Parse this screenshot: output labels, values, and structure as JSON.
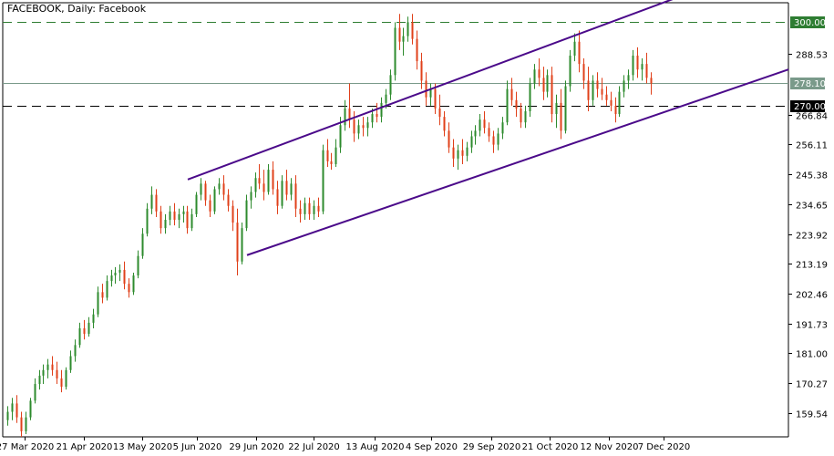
{
  "header": {
    "symbol": "FACEBOOK",
    "timeframe": "Daily:",
    "description": "Facebook"
  },
  "chart_data": {
    "type": "candlestick",
    "title": "FACEBOOK, Daily:  Facebook",
    "ylim": [
      151.0,
      307.0
    ],
    "grid": false,
    "y_ticks": [
      "300.00",
      "288.53",
      "278.10",
      "270.00",
      "266.84",
      "256.11",
      "245.38",
      "234.65",
      "223.92",
      "213.19",
      "202.46",
      "191.73",
      "181.00",
      "170.27",
      "159.54"
    ],
    "x_ticks": [
      "27 Mar 2020",
      "21 Apr 2020",
      "13 May 2020",
      "5 Jun 2020",
      "29 Jun 2020",
      "22 Jul 2020",
      "13 Aug 2020",
      "4 Sep 2020",
      "29 Sep 2020",
      "21 Oct 2020",
      "12 Nov 2020",
      "7 Dec 2020"
    ],
    "levels": [
      {
        "value": 300.0,
        "label": "300.00",
        "style": "dashed",
        "color": "#2e7d32",
        "badge_bg": "#2e7d32",
        "badge_fg": "#ffffff"
      },
      {
        "value": 278.1,
        "label": "278.10",
        "style": "solid",
        "color": "#7a9a8a",
        "badge_bg": "#7a9a8a",
        "badge_fg": "#ffffff"
      },
      {
        "value": 270.0,
        "label": "270.00",
        "style": "dashed",
        "color": "#000000",
        "badge_bg": "#000000",
        "badge_fg": "#ffffff"
      }
    ],
    "channel_lines": [
      {
        "name": "upper",
        "from": [
          "5 Jun 2020",
          243.5
        ],
        "to": [
          "10 Dec 2020",
          309.5
        ],
        "color": "#4b0a8a"
      },
      {
        "name": "lower",
        "from": [
          "29 Jun 2020",
          216.3
        ],
        "to": [
          "15 Dec 2020",
          283.0
        ],
        "color": "#4b0a8a"
      }
    ],
    "colors": {
      "up": "#2e8b2e",
      "down": "#e0401a",
      "wick": "#000000"
    },
    "last_close": 278.1,
    "series": [
      {
        "name": "Facebook",
        "ohlc": [
          [
            157,
            162,
            155,
            160
          ],
          [
            160,
            165,
            157,
            163
          ],
          [
            163,
            166,
            156,
            158
          ],
          [
            158,
            160,
            151,
            153
          ],
          [
            153,
            160,
            152,
            158
          ],
          [
            158,
            165,
            157,
            164
          ],
          [
            164,
            172,
            163,
            170
          ],
          [
            170,
            175,
            168,
            173
          ],
          [
            173,
            177,
            170,
            175
          ],
          [
            175,
            179,
            172,
            177
          ],
          [
            177,
            180,
            173,
            175
          ],
          [
            175,
            178,
            170,
            172
          ],
          [
            172,
            175,
            167,
            169
          ],
          [
            169,
            176,
            168,
            175
          ],
          [
            175,
            182,
            174,
            180
          ],
          [
            180,
            186,
            178,
            184
          ],
          [
            184,
            192,
            183,
            190
          ],
          [
            190,
            193,
            186,
            188
          ],
          [
            188,
            194,
            187,
            192
          ],
          [
            192,
            197,
            190,
            195
          ],
          [
            195,
            205,
            194,
            203
          ],
          [
            203,
            206,
            199,
            201
          ],
          [
            201,
            209,
            200,
            207
          ],
          [
            207,
            211,
            205,
            209
          ],
          [
            209,
            212,
            206,
            210
          ],
          [
            210,
            213,
            207,
            211
          ],
          [
            211,
            214,
            204,
            206
          ],
          [
            206,
            208,
            201,
            203
          ],
          [
            203,
            210,
            202,
            209
          ],
          [
            209,
            218,
            208,
            216
          ],
          [
            216,
            226,
            215,
            224
          ],
          [
            224,
            235,
            223,
            233
          ],
          [
            233,
            241,
            231,
            238
          ],
          [
            238,
            240,
            230,
            232
          ],
          [
            232,
            234,
            224,
            226
          ],
          [
            226,
            231,
            224,
            229
          ],
          [
            229,
            234,
            227,
            232
          ],
          [
            232,
            235,
            227,
            229
          ],
          [
            229,
            233,
            226,
            231
          ],
          [
            231,
            234,
            228,
            232
          ],
          [
            232,
            234,
            224,
            226
          ],
          [
            226,
            233,
            225,
            231
          ],
          [
            231,
            239,
            230,
            238
          ],
          [
            238,
            244,
            236,
            242
          ],
          [
            242,
            243,
            234,
            236
          ],
          [
            236,
            238,
            230,
            232
          ],
          [
            232,
            241,
            231,
            240
          ],
          [
            240,
            244,
            238,
            242
          ],
          [
            242,
            245,
            236,
            238
          ],
          [
            238,
            240,
            232,
            234
          ],
          [
            234,
            236,
            225,
            228
          ],
          [
            228,
            233,
            209,
            214
          ],
          [
            214,
            228,
            213,
            226
          ],
          [
            226,
            238,
            225,
            236
          ],
          [
            236,
            241,
            233,
            239
          ],
          [
            239,
            246,
            237,
            244
          ],
          [
            244,
            249,
            240,
            242
          ],
          [
            242,
            247,
            236,
            239
          ],
          [
            239,
            249,
            238,
            247
          ],
          [
            247,
            250,
            238,
            240
          ],
          [
            240,
            243,
            231,
            234
          ],
          [
            234,
            245,
            233,
            243
          ],
          [
            243,
            247,
            236,
            238
          ],
          [
            238,
            244,
            236,
            242
          ],
          [
            242,
            245,
            230,
            233
          ],
          [
            233,
            236,
            228,
            231
          ],
          [
            231,
            237,
            229,
            235
          ],
          [
            235,
            237,
            229,
            231
          ],
          [
            231,
            236,
            229,
            234
          ],
          [
            234,
            237,
            230,
            232
          ],
          [
            232,
            256,
            231,
            254
          ],
          [
            254,
            258,
            248,
            250
          ],
          [
            250,
            253,
            247,
            249
          ],
          [
            249,
            258,
            248,
            255
          ],
          [
            255,
            266,
            253,
            263
          ],
          [
            263,
            272,
            261,
            269
          ],
          [
            269,
            278,
            262,
            265
          ],
          [
            265,
            268,
            257,
            260
          ],
          [
            260,
            265,
            258,
            263
          ],
          [
            263,
            266,
            259,
            262
          ],
          [
            262,
            266,
            259,
            264
          ],
          [
            264,
            269,
            262,
            267
          ],
          [
            267,
            271,
            264,
            266
          ],
          [
            266,
            273,
            264,
            271
          ],
          [
            271,
            276,
            269,
            274
          ],
          [
            274,
            283,
            272,
            281
          ],
          [
            281,
            300,
            279,
            298
          ],
          [
            298,
            303,
            290,
            293
          ],
          [
            293,
            298,
            288,
            295
          ],
          [
            295,
            302,
            293,
            300
          ],
          [
            300,
            303,
            292,
            294
          ],
          [
            294,
            297,
            283,
            286
          ],
          [
            286,
            289,
            276,
            279
          ],
          [
            279,
            282,
            270,
            273
          ],
          [
            273,
            278,
            270,
            276
          ],
          [
            276,
            278,
            267,
            269
          ],
          [
            269,
            274,
            263,
            266
          ],
          [
            266,
            268,
            259,
            261
          ],
          [
            261,
            264,
            253,
            255
          ],
          [
            255,
            258,
            248,
            251
          ],
          [
            251,
            256,
            247,
            254
          ],
          [
            254,
            258,
            249,
            252
          ],
          [
            252,
            257,
            250,
            255
          ],
          [
            255,
            261,
            253,
            259
          ],
          [
            259,
            263,
            256,
            261
          ],
          [
            261,
            267,
            259,
            265
          ],
          [
            265,
            268,
            260,
            262
          ],
          [
            262,
            264,
            257,
            259
          ],
          [
            259,
            261,
            253,
            256
          ],
          [
            256,
            262,
            254,
            260
          ],
          [
            260,
            266,
            258,
            264
          ],
          [
            264,
            279,
            263,
            276
          ],
          [
            276,
            280,
            270,
            272
          ],
          [
            272,
            275,
            266,
            269
          ],
          [
            269,
            271,
            262,
            264
          ],
          [
            264,
            270,
            262,
            268
          ],
          [
            268,
            280,
            266,
            278
          ],
          [
            278,
            285,
            276,
            283
          ],
          [
            283,
            287,
            277,
            280
          ],
          [
            280,
            284,
            272,
            275
          ],
          [
            275,
            283,
            273,
            281
          ],
          [
            281,
            284,
            264,
            267
          ],
          [
            267,
            274,
            262,
            271
          ],
          [
            271,
            276,
            258,
            261
          ],
          [
            261,
            279,
            260,
            277
          ],
          [
            277,
            290,
            275,
            288
          ],
          [
            288,
            296,
            286,
            293
          ],
          [
            293,
            297,
            282,
            285
          ],
          [
            285,
            287,
            276,
            279
          ],
          [
            279,
            284,
            268,
            272
          ],
          [
            272,
            281,
            270,
            279
          ],
          [
            279,
            282,
            273,
            276
          ],
          [
            276,
            280,
            272,
            274
          ],
          [
            274,
            277,
            270,
            272
          ],
          [
            272,
            275,
            268,
            270
          ],
          [
            270,
            273,
            264,
            267
          ],
          [
            267,
            277,
            266,
            275
          ],
          [
            275,
            281,
            273,
            279
          ],
          [
            279,
            283,
            276,
            281
          ],
          [
            281,
            290,
            279,
            288
          ],
          [
            288,
            291,
            280,
            283
          ],
          [
            283,
            287,
            279,
            285
          ],
          [
            285,
            289,
            278,
            280
          ],
          [
            280,
            282,
            274,
            278
          ]
        ]
      }
    ]
  }
}
